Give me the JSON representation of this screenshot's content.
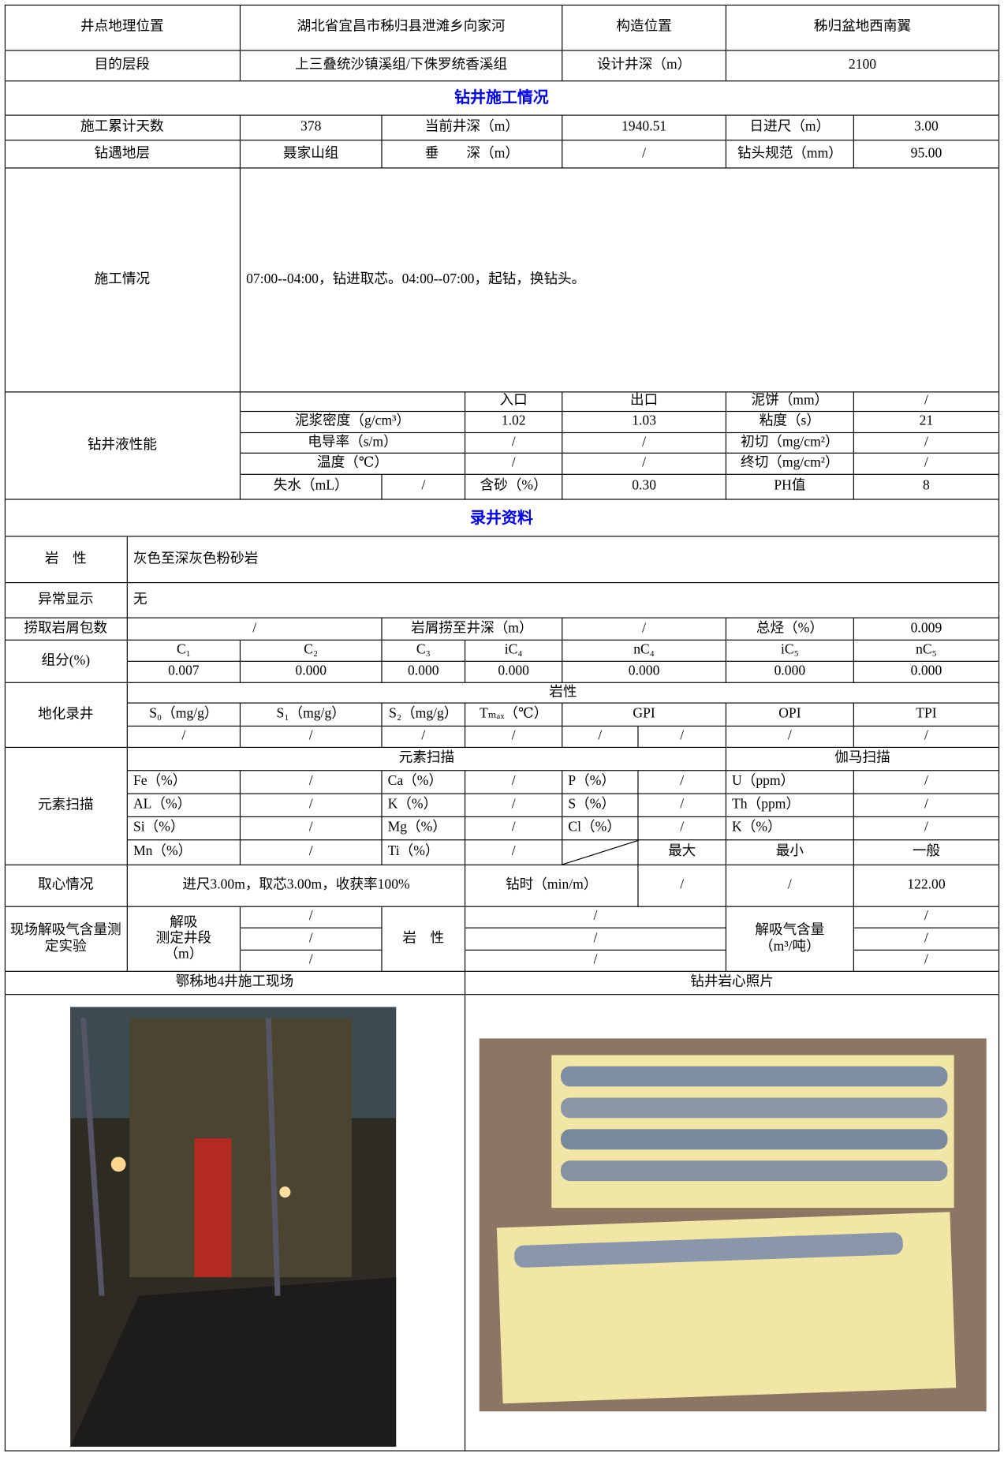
{
  "table": {
    "rows": [
      [
        "井点地理位置",
        "湖北省宜昌市秭归县泄滩乡向家河",
        "构造位置",
        "秭归盆地西南翼"
      ],
      [
        "目的层段",
        "上三叠统沙镇溪组/下侏罗统香溪组",
        "设计井深（m）",
        "2100"
      ],
      [
        "钻井施工情况"
      ],
      [
        "施工累计天数",
        "378",
        "当前井深（m）",
        "1940.51",
        "日进尺（m）",
        "3.00"
      ],
      [
        "钻遇地层",
        "聂家山组",
        "垂　　深（m）",
        "/",
        "钻头规范（mm）",
        "95.00"
      ],
      [
        "施工情况",
        "07:00--04:00，钻进取芯。04:00--07:00，起钻，换钻头。"
      ],
      [
        "钻井液性能"
      ],
      [
        "入口",
        "出口",
        "泥饼（mm）",
        "/"
      ],
      [
        "泥浆密度（g/cm³）",
        "1.02",
        "1.03",
        "粘度（s）",
        "21"
      ],
      [
        "电导率（s/m）",
        "/",
        "/",
        "初切（mg/cm²）",
        "/"
      ],
      [
        "温度（℃）",
        "/",
        "/",
        "终切（mg/cm²）",
        "/"
      ],
      [
        "失水（mL）",
        "/",
        "含砂（%）",
        "0.30",
        "PH值",
        "8"
      ],
      [
        "录井资料"
      ],
      [
        "岩　性",
        "灰色至深灰色粉砂岩"
      ],
      [
        "异常显示",
        "无"
      ],
      [
        "捞取岩屑包数",
        "/",
        "岩屑捞至井深（m）",
        "/",
        "总烃（%）",
        "0.009"
      ],
      [
        "组分(%)"
      ],
      [
        "C₁",
        "C₂",
        "C₃",
        "iC₄",
        "nC₄",
        "iC₅",
        "nC₅"
      ],
      [
        "0.007",
        "0.000",
        "0.000",
        "0.000",
        "0.000",
        "0.000",
        "0.000"
      ],
      [
        "地化录井"
      ],
      [
        "岩性"
      ],
      [
        "S₀（mg/g）",
        "S₁（mg/g）",
        "S₂（mg/g）",
        "Tₘₐₓ（℃）",
        "GPI",
        "OPI",
        "TPI"
      ],
      [
        "/",
        "/",
        "/",
        "/",
        "/",
        "/",
        "/",
        "/"
      ],
      [
        "元素扫描"
      ],
      [
        "元素扫描",
        "伽马扫描"
      ],
      [
        "Fe（%）",
        "/",
        "Ca（%）",
        "/",
        "P（%）",
        "/",
        "U（ppm）",
        "/"
      ],
      [
        "AL（%）",
        "/",
        "K（%）",
        "/",
        "S（%）",
        "/",
        "Th（ppm）",
        "/"
      ],
      [
        "Si（%）",
        "/",
        "Mg（%）",
        "/",
        "Cl（%）",
        "/",
        "K（%）",
        "/"
      ],
      [
        "Mn（%）",
        "/",
        "Ti（%）",
        "/",
        "最大",
        "最小",
        "一般"
      ],
      [
        "取心情况",
        "进尺3.00m，取芯3.00m，收获率100%",
        "钻时（min/m）",
        "/",
        "/",
        "122.00"
      ],
      [
        "现场解吸气含量测定实验",
        "解吸\n测定井段\n（m）",
        "岩　性",
        "解吸气含量\n（m³/吨）"
      ],
      [
        "/",
        "/",
        "/"
      ],
      [
        "/",
        "/",
        "/"
      ],
      [
        "/",
        "/",
        "/"
      ],
      [
        "鄂秭地4井施工现场",
        "钻井岩心照片"
      ]
    ]
  }
}
